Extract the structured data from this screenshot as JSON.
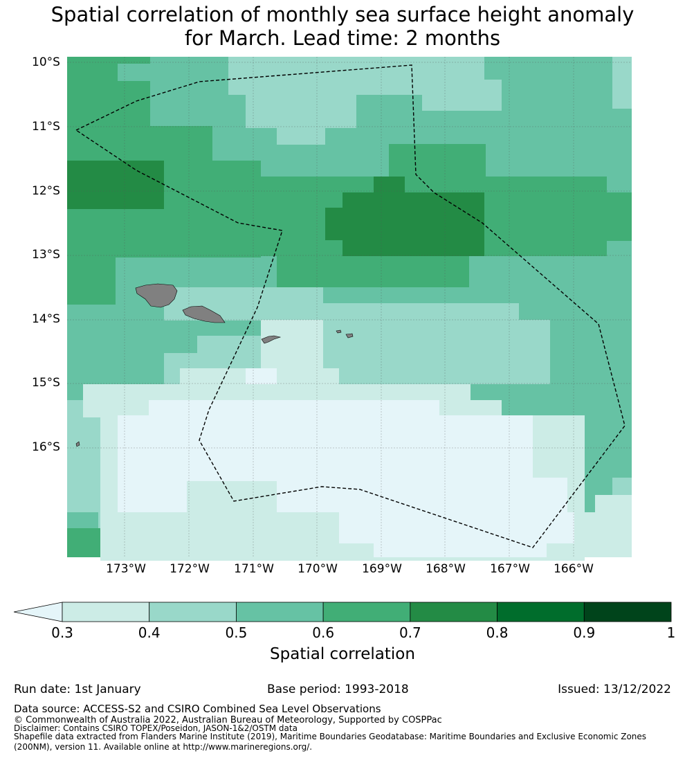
{
  "title": {
    "line1": "Spatial correlation of monthly sea surface height anomaly",
    "line2": "for March. Lead time: 2 months"
  },
  "map": {
    "lat_labels": [
      "10°S",
      "11°S",
      "12°S",
      "13°S",
      "14°S",
      "15°S",
      "16°S"
    ],
    "lon_labels": [
      "173°W",
      "172°W",
      "171°W",
      "170°W",
      "169°W",
      "168°W",
      "167°W",
      "166°W"
    ],
    "land_color": "#808080",
    "boundary_color": "#000000"
  },
  "colorbar": {
    "ticks": [
      "0.3",
      "0.4",
      "0.5",
      "0.6",
      "0.7",
      "0.8",
      "0.9",
      "1"
    ],
    "colors": [
      "#e5f5f9",
      "#ccece6",
      "#99d8c9",
      "#66c2a4",
      "#41ae76",
      "#238b45",
      "#006d2c",
      "#00441b"
    ],
    "label": "Spatial correlation"
  },
  "footer": {
    "run_date": "Run date: 1st January",
    "base_period": "Base period: 1993-2018",
    "issued": "Issued: 13/12/2022",
    "data_source": "Data source: ACCESS-S2 and CSIRO Combined Sea Level Observations",
    "copyright": "© Commonwealth of Australia 2022, Australian Bureau of Meteorology, Supported by COSPPac",
    "disclaimer": "Disclaimer: Contains CSIRO TOPEX/Poseidon, JASON-1&2/OSTM data",
    "shapefile_1": "Shapefile data extracted from Flanders Marine Institute (2019), Maritime Boundaries Geodatabase: Maritime Boundaries and Exclusive Economic Zones",
    "shapefile_2": "(200NM), version 11. Available online at http://www.marineregions.org/."
  }
}
